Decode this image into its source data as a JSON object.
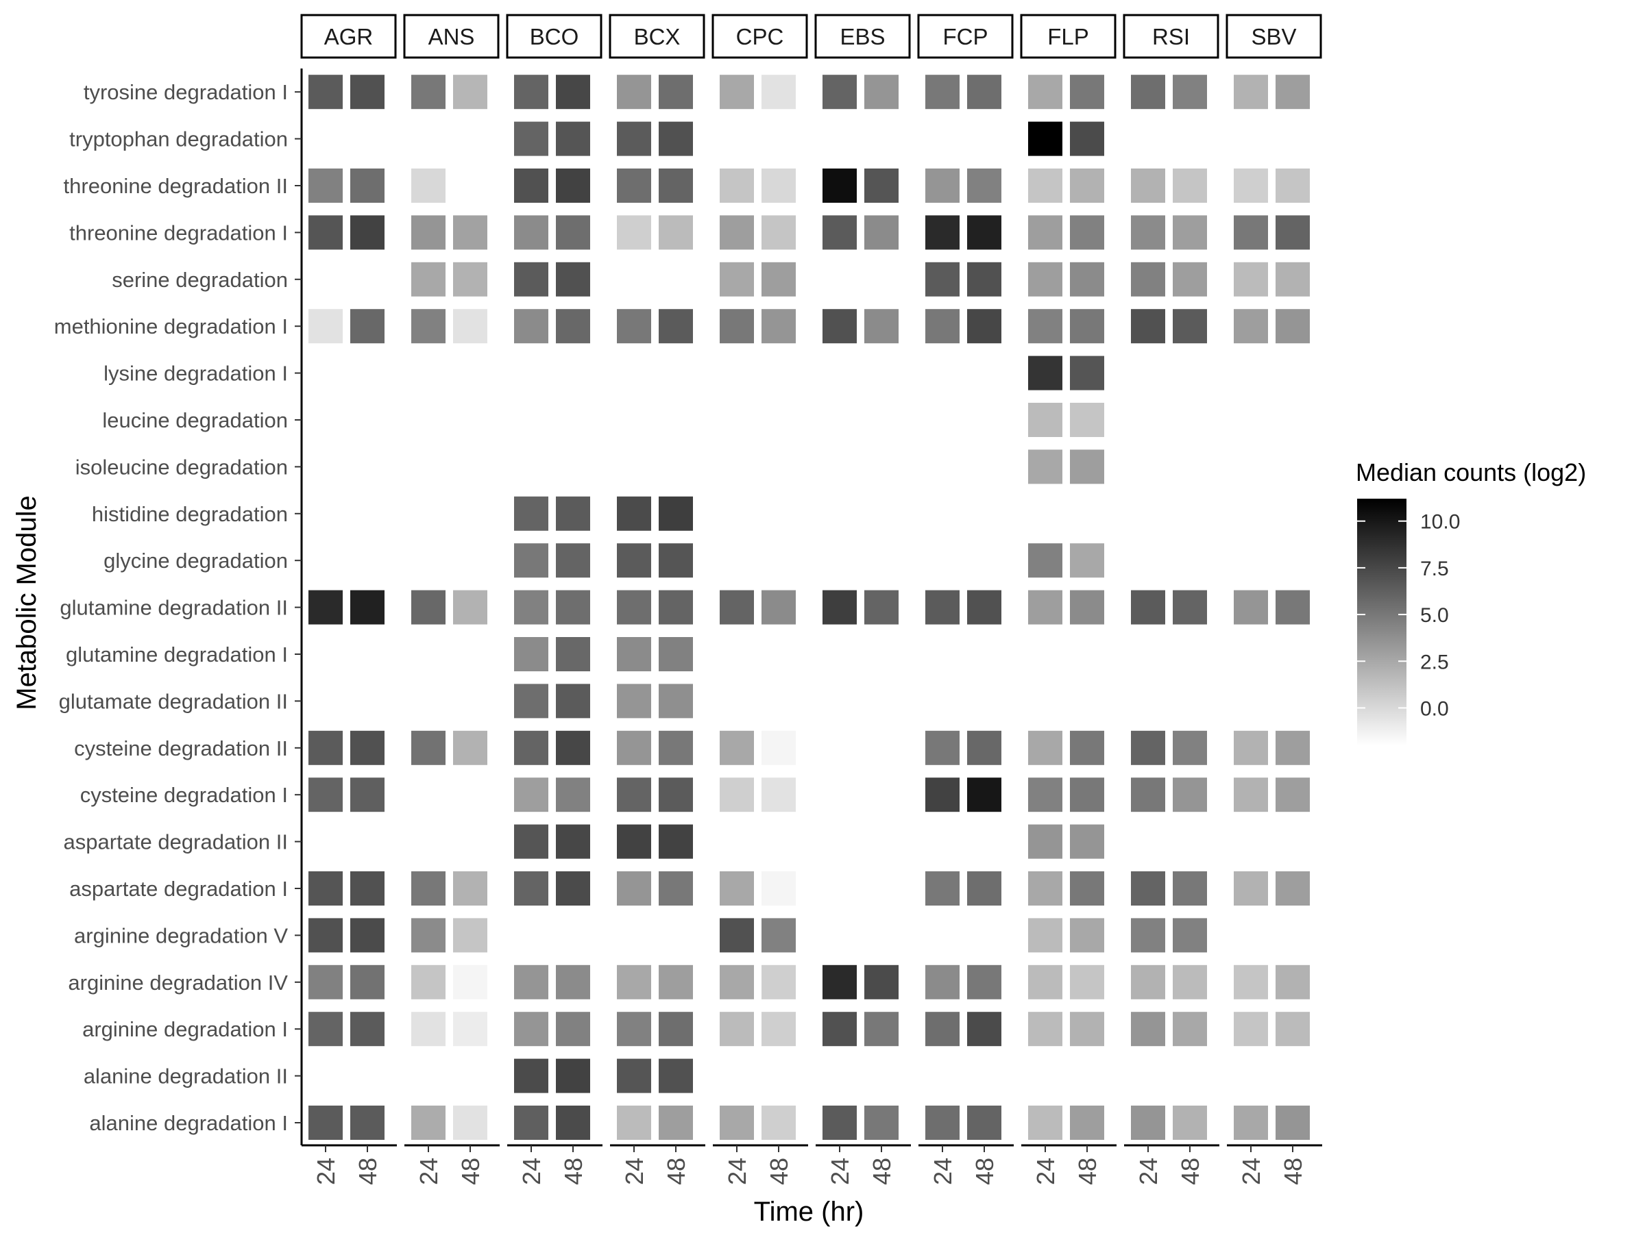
{
  "chart_data": {
    "type": "heatmap",
    "xlabel": "Time (hr)",
    "ylabel": "Metabolic Module",
    "legend_title": "Median counts (log2)",
    "legend_ticks": [
      "10.0",
      "7.5",
      "5.0",
      "2.5",
      "0.0"
    ],
    "legend_tick_values": [
      10,
      7.5,
      5,
      2.5,
      0
    ],
    "value_range": [
      -2,
      11.2
    ],
    "color_low": "#ffffff",
    "color_high": "#000000",
    "panels": [
      "AGR",
      "ANS",
      "BCO",
      "BCX",
      "CPC",
      "EBS",
      "FCP",
      "FLP",
      "RSI",
      "SBV"
    ],
    "times": [
      "24",
      "48"
    ],
    "rows": [
      "tyrosine degradation I",
      "tryptophan degradation",
      "threonine degradation II",
      "threonine degradation I",
      "serine degradation",
      "methionine degradation I",
      "lysine degradation I",
      "leucine degradation",
      "isoleucine degradation",
      "histidine degradation",
      "glycine degradation",
      "glutamine degradation II",
      "glutamine degradation I",
      "glutamate degradation II",
      "cysteine degradation II",
      "cysteine degradation I",
      "aspartate degradation II",
      "aspartate degradation I",
      "arginine degradation V",
      "arginine degradation IV",
      "arginine degradation I",
      "alanine degradation II",
      "alanine degradation I"
    ],
    "values": {
      "AGR": [
        [
          6.5,
          7.0
        ],
        [
          null,
          null
        ],
        [
          4.5,
          5.5
        ],
        [
          6.8,
          7.8
        ],
        [
          null,
          null
        ],
        [
          -0.5,
          5.8
        ],
        [
          null,
          null
        ],
        [
          null,
          null
        ],
        [
          null,
          null
        ],
        [
          null,
          null
        ],
        [
          null,
          null
        ],
        [
          9.0,
          9.5
        ],
        [
          null,
          null
        ],
        [
          null,
          null
        ],
        [
          6.5,
          7.0
        ],
        [
          6.0,
          6.3
        ],
        [
          null,
          null
        ],
        [
          6.8,
          7.0
        ],
        [
          7.0,
          7.3
        ],
        [
          4.5,
          5.3
        ],
        [
          6.0,
          6.5
        ],
        [
          null,
          null
        ],
        [
          6.5,
          6.5
        ]
      ],
      "ANS": [
        [
          5.0,
          1.8
        ],
        [
          null,
          null
        ],
        [
          0.0,
          null
        ],
        [
          3.5,
          2.8
        ],
        [
          2.5,
          2.0
        ],
        [
          4.5,
          -0.5
        ],
        [
          null,
          null
        ],
        [
          null,
          null
        ],
        [
          null,
          null
        ],
        [
          null,
          null
        ],
        [
          null,
          null
        ],
        [
          5.8,
          2.0
        ],
        [
          null,
          null
        ],
        [
          null,
          null
        ],
        [
          5.3,
          2.0
        ],
        [
          null,
          null
        ],
        [
          null,
          null
        ],
        [
          5.0,
          2.0
        ],
        [
          4.0,
          1.0
        ],
        [
          1.0,
          -1.5
        ],
        [
          -0.5,
          -1.0
        ],
        [
          null,
          null
        ],
        [
          2.3,
          -0.5
        ]
      ],
      "BCO": [
        [
          6.0,
          7.5
        ],
        [
          6.0,
          6.8
        ],
        [
          7.0,
          7.8
        ],
        [
          4.0,
          5.5
        ],
        [
          6.5,
          7.0
        ],
        [
          4.0,
          5.8
        ],
        [
          null,
          null
        ],
        [
          null,
          null
        ],
        [
          null,
          null
        ],
        [
          6.0,
          6.5
        ],
        [
          5.0,
          6.0
        ],
        [
          4.5,
          5.5
        ],
        [
          4.0,
          5.8
        ],
        [
          5.5,
          6.5
        ],
        [
          6.0,
          7.5
        ],
        [
          3.0,
          4.5
        ],
        [
          6.8,
          7.5
        ],
        [
          6.0,
          7.3
        ],
        [
          null,
          null
        ],
        [
          3.5,
          4.0
        ],
        [
          3.5,
          4.5
        ],
        [
          7.3,
          7.8
        ],
        [
          6.3,
          7.3
        ]
      ],
      "BCX": [
        [
          3.5,
          5.5
        ],
        [
          6.5,
          7.0
        ],
        [
          5.5,
          6.0
        ],
        [
          0.5,
          1.5
        ],
        [
          null,
          null
        ],
        [
          5.0,
          6.5
        ],
        [
          null,
          null
        ],
        [
          null,
          null
        ],
        [
          null,
          null
        ],
        [
          7.3,
          8.0
        ],
        [
          6.5,
          6.8
        ],
        [
          5.5,
          6.0
        ],
        [
          4.0,
          4.5
        ],
        [
          3.5,
          3.8
        ],
        [
          3.5,
          5.0
        ],
        [
          6.0,
          6.5
        ],
        [
          7.8,
          7.8
        ],
        [
          3.5,
          5.0
        ],
        [
          null,
          null
        ],
        [
          2.5,
          3.0
        ],
        [
          4.5,
          5.5
        ],
        [
          6.8,
          7.0
        ],
        [
          1.5,
          3.0
        ]
      ],
      "CPC": [
        [
          2.5,
          -0.5
        ],
        [
          null,
          null
        ],
        [
          1.0,
          0.0
        ],
        [
          3.0,
          1.0
        ],
        [
          2.5,
          3.0
        ],
        [
          5.0,
          3.5
        ],
        [
          null,
          null
        ],
        [
          null,
          null
        ],
        [
          null,
          null
        ],
        [
          null,
          null
        ],
        [
          null,
          null
        ],
        [
          6.0,
          4.0
        ],
        [
          null,
          null
        ],
        [
          null,
          null
        ],
        [
          2.5,
          -1.5
        ],
        [
          0.5,
          -0.5
        ],
        [
          null,
          null
        ],
        [
          2.5,
          -1.5
        ],
        [
          7.0,
          4.5
        ],
        [
          2.5,
          0.5
        ],
        [
          1.5,
          0.5
        ],
        [
          null,
          null
        ],
        [
          2.5,
          0.5
        ]
      ],
      "EBS": [
        [
          6.0,
          3.5
        ],
        [
          null,
          null
        ],
        [
          10.5,
          6.8
        ],
        [
          6.5,
          4.0
        ],
        [
          null,
          null
        ],
        [
          7.0,
          4.0
        ],
        [
          null,
          null
        ],
        [
          null,
          null
        ],
        [
          null,
          null
        ],
        [
          null,
          null
        ],
        [
          null,
          null
        ],
        [
          8.0,
          6.0
        ],
        [
          null,
          null
        ],
        [
          null,
          null
        ],
        [
          null,
          null
        ],
        [
          null,
          null
        ],
        [
          null,
          null
        ],
        [
          null,
          null
        ],
        [
          null,
          null
        ],
        [
          9.0,
          7.3
        ],
        [
          7.0,
          5.0
        ],
        [
          null,
          null
        ],
        [
          6.5,
          5.0
        ]
      ],
      "FCP": [
        [
          5.0,
          5.5
        ],
        [
          null,
          null
        ],
        [
          3.5,
          4.5
        ],
        [
          9.0,
          9.5
        ],
        [
          6.5,
          7.0
        ],
        [
          5.0,
          7.5
        ],
        [
          null,
          null
        ],
        [
          null,
          null
        ],
        [
          null,
          null
        ],
        [
          null,
          null
        ],
        [
          null,
          null
        ],
        [
          6.5,
          7.0
        ],
        [
          null,
          null
        ],
        [
          null,
          null
        ],
        [
          5.0,
          5.8
        ],
        [
          7.8,
          10.0
        ],
        [
          null,
          null
        ],
        [
          5.0,
          5.5
        ],
        [
          null,
          null
        ],
        [
          4.0,
          5.0
        ],
        [
          5.5,
          7.3
        ],
        [
          null,
          null
        ],
        [
          5.5,
          6.0
        ]
      ],
      "FLP": [
        [
          2.5,
          5.0
        ],
        [
          11.2,
          7.3
        ],
        [
          1.0,
          2.0
        ],
        [
          3.0,
          4.5
        ],
        [
          3.0,
          4.0
        ],
        [
          4.5,
          5.0
        ],
        [
          8.5,
          6.8
        ],
        [
          1.5,
          1.0
        ],
        [
          2.5,
          3.0
        ],
        [
          null,
          null
        ],
        [
          4.5,
          2.5
        ],
        [
          3.0,
          4.0
        ],
        [
          null,
          null
        ],
        [
          null,
          null
        ],
        [
          2.5,
          5.0
        ],
        [
          4.5,
          5.0
        ],
        [
          3.5,
          3.5
        ],
        [
          2.5,
          5.0
        ],
        [
          1.5,
          2.5
        ],
        [
          1.5,
          1.0
        ],
        [
          1.5,
          2.0
        ],
        [
          null,
          null
        ],
        [
          1.5,
          3.0
        ]
      ],
      "RSI": [
        [
          5.5,
          4.5
        ],
        [
          null,
          null
        ],
        [
          2.0,
          1.0
        ],
        [
          4.0,
          3.0
        ],
        [
          4.5,
          3.0
        ],
        [
          7.0,
          6.5
        ],
        [
          null,
          null
        ],
        [
          null,
          null
        ],
        [
          null,
          null
        ],
        [
          null,
          null
        ],
        [
          null,
          null
        ],
        [
          6.5,
          6.0
        ],
        [
          null,
          null
        ],
        [
          null,
          null
        ],
        [
          6.0,
          4.5
        ],
        [
          5.0,
          3.5
        ],
        [
          null,
          null
        ],
        [
          6.0,
          5.0
        ],
        [
          4.5,
          4.5
        ],
        [
          2.0,
          1.5
        ],
        [
          3.5,
          2.5
        ],
        [
          null,
          null
        ],
        [
          3.5,
          2.0
        ]
      ],
      "SBV": [
        [
          2.0,
          3.0
        ],
        [
          null,
          null
        ],
        [
          0.5,
          1.0
        ],
        [
          5.0,
          6.0
        ],
        [
          1.5,
          2.0
        ],
        [
          3.0,
          3.5
        ],
        [
          null,
          null
        ],
        [
          null,
          null
        ],
        [
          null,
          null
        ],
        [
          null,
          null
        ],
        [
          null,
          null
        ],
        [
          3.5,
          5.0
        ],
        [
          null,
          null
        ],
        [
          null,
          null
        ],
        [
          2.0,
          3.0
        ],
        [
          2.0,
          3.0
        ],
        [
          null,
          null
        ],
        [
          2.0,
          3.0
        ],
        [
          null,
          null
        ],
        [
          1.0,
          2.0
        ],
        [
          1.0,
          1.5
        ],
        [
          null,
          null
        ],
        [
          2.5,
          3.5
        ]
      ]
    }
  }
}
